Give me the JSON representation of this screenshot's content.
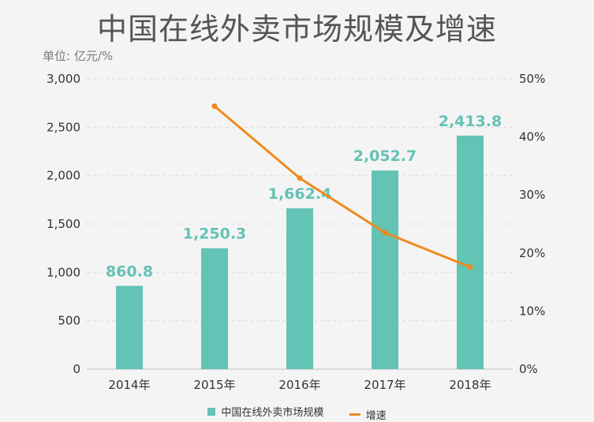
{
  "header": {
    "title": "中国在线外卖市场规模及增速",
    "unit": "单位: 亿元/%"
  },
  "colors": {
    "bar": "#63c3b5",
    "line": "#ee8a1c",
    "grid": "#dddddd",
    "background": "#f5f4f4"
  },
  "chart_data": {
    "type": "bar",
    "categories": [
      "2014年",
      "2015年",
      "2016年",
      "2017年",
      "2018年"
    ],
    "series": [
      {
        "name": "中国在线外卖市场规模",
        "type": "bar",
        "axis": "left",
        "values": [
          860.8,
          1250.3,
          1662.4,
          2052.7,
          2413.8
        ],
        "labels": [
          "860.8",
          "1,250.3",
          "1,662.4",
          "2,052.7",
          "2,413.8"
        ]
      },
      {
        "name": "增速",
        "type": "line",
        "axis": "right",
        "values": [
          null,
          45.3,
          32.9,
          23.5,
          17.6
        ]
      }
    ],
    "y_left": {
      "min": 0,
      "max": 3000,
      "ticks": [
        0,
        500,
        1000,
        1500,
        2000,
        2500,
        3000
      ],
      "tick_labels": [
        "0",
        "500",
        "1,000",
        "1,500",
        "2,000",
        "2,500",
        "3,000"
      ]
    },
    "y_right": {
      "min": 0,
      "max": 50,
      "ticks": [
        0,
        10,
        20,
        30,
        40,
        50
      ],
      "tick_labels": [
        "0%",
        "10%",
        "20%",
        "30%",
        "40%",
        "50%"
      ]
    },
    "grid": true,
    "legend_position": "bottom"
  }
}
